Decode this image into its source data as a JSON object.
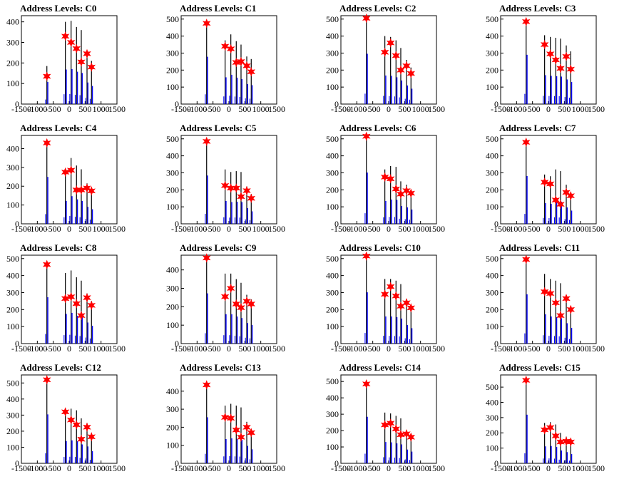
{
  "colors": {
    "background": "#ffffff",
    "blue": "#0000ff",
    "black": "#000000",
    "marker": "#ff0000"
  },
  "chart_data": [
    {
      "type": "bar",
      "title": "Address Levels: C0",
      "xlim": [
        -1500,
        1500
      ],
      "ylim": [
        0,
        430
      ],
      "xticks": [
        "-1500",
        "-1000",
        "-500",
        "0",
        "500",
        "1000",
        "1500"
      ],
      "yticks": [
        "0",
        "100",
        "200",
        "300",
        "400"
      ],
      "peaks": [
        [
          -700,
          185
        ],
        [
          -120,
          400
        ],
        [
          60,
          405
        ],
        [
          230,
          375
        ],
        [
          380,
          360
        ],
        [
          560,
          250
        ],
        [
          700,
          210
        ]
      ],
      "markers": [
        [
          -700,
          135
        ],
        [
          -120,
          330
        ],
        [
          60,
          300
        ],
        [
          230,
          270
        ],
        [
          380,
          205
        ],
        [
          560,
          245
        ],
        [
          700,
          180
        ]
      ]
    },
    {
      "type": "bar",
      "title": "Address Levels: C1",
      "xlim": [
        -1500,
        1500
      ],
      "ylim": [
        0,
        520
      ],
      "xticks": [
        "-1500",
        "-1000",
        "-500",
        "0",
        "500",
        "1000",
        "1500"
      ],
      "yticks": [
        "0",
        "100",
        "200",
        "300",
        "400",
        "500"
      ],
      "peaks": [
        [
          -700,
          480
        ],
        [
          -120,
          375
        ],
        [
          60,
          410
        ],
        [
          230,
          370
        ],
        [
          380,
          350
        ],
        [
          560,
          280
        ],
        [
          700,
          265
        ]
      ],
      "markers": [
        [
          -700,
          475
        ],
        [
          -120,
          340
        ],
        [
          60,
          325
        ],
        [
          230,
          245
        ],
        [
          380,
          250
        ],
        [
          560,
          225
        ],
        [
          700,
          190
        ]
      ]
    },
    {
      "type": "bar",
      "title": "Address Levels: C2",
      "xlim": [
        -1500,
        1500
      ],
      "ylim": [
        0,
        520
      ],
      "xticks": [
        "-1500",
        "-1000",
        "-500",
        "0",
        "500",
        "1000",
        "1500"
      ],
      "yticks": [
        "0",
        "100",
        "200",
        "300",
        "400",
        "500"
      ],
      "peaks": [
        [
          -700,
          510
        ],
        [
          -120,
          400
        ],
        [
          60,
          395
        ],
        [
          230,
          375
        ],
        [
          380,
          330
        ],
        [
          560,
          260
        ],
        [
          700,
          215
        ]
      ],
      "markers": [
        [
          -700,
          505
        ],
        [
          -120,
          305
        ],
        [
          60,
          360
        ],
        [
          230,
          285
        ],
        [
          380,
          200
        ],
        [
          560,
          225
        ],
        [
          700,
          180
        ]
      ]
    },
    {
      "type": "bar",
      "title": "Address Levels: C3",
      "xlim": [
        -1500,
        1500
      ],
      "ylim": [
        0,
        520
      ],
      "xticks": [
        "-1500",
        "-1000",
        "-500",
        "0",
        "500",
        "1000",
        "1500"
      ],
      "yticks": [
        "0",
        "100",
        "200",
        "300",
        "400",
        "500"
      ],
      "peaks": [
        [
          -700,
          500
        ],
        [
          -120,
          405
        ],
        [
          60,
          395
        ],
        [
          230,
          390
        ],
        [
          380,
          385
        ],
        [
          560,
          345
        ],
        [
          700,
          310
        ]
      ],
      "markers": [
        [
          -700,
          485
        ],
        [
          -120,
          350
        ],
        [
          60,
          295
        ],
        [
          230,
          260
        ],
        [
          380,
          210
        ],
        [
          560,
          280
        ],
        [
          700,
          205
        ]
      ]
    },
    {
      "type": "bar",
      "title": "Address Levels: C4",
      "xlim": [
        -1500,
        1500
      ],
      "ylim": [
        0,
        470
      ],
      "xticks": [
        "-1500",
        "-1000",
        "-500",
        "0",
        "500",
        "1000",
        "1500"
      ],
      "yticks": [
        "0",
        "100",
        "200",
        "300",
        "400"
      ],
      "peaks": [
        [
          -700,
          430
        ],
        [
          -120,
          290
        ],
        [
          60,
          350
        ],
        [
          230,
          310
        ],
        [
          380,
          290
        ],
        [
          560,
          215
        ],
        [
          700,
          185
        ]
      ],
      "markers": [
        [
          -700,
          430
        ],
        [
          -120,
          275
        ],
        [
          60,
          285
        ],
        [
          230,
          180
        ],
        [
          380,
          180
        ],
        [
          560,
          190
        ],
        [
          700,
          175
        ]
      ]
    },
    {
      "type": "bar",
      "title": "Address Levels: C5",
      "xlim": [
        -1500,
        1500
      ],
      "ylim": [
        0,
        520
      ],
      "xticks": [
        "-1500",
        "-1000",
        "-500",
        "0",
        "500",
        "1000",
        "1500"
      ],
      "yticks": [
        "0",
        "100",
        "200",
        "300",
        "400",
        "500"
      ],
      "peaks": [
        [
          -700,
          490
        ],
        [
          -120,
          320
        ],
        [
          60,
          305
        ],
        [
          230,
          310
        ],
        [
          380,
          305
        ],
        [
          560,
          220
        ],
        [
          700,
          175
        ]
      ],
      "markers": [
        [
          -700,
          485
        ],
        [
          -120,
          225
        ],
        [
          60,
          210
        ],
        [
          230,
          210
        ],
        [
          380,
          160
        ],
        [
          560,
          195
        ],
        [
          700,
          150
        ]
      ]
    },
    {
      "type": "bar",
      "title": "Address Levels: C6",
      "xlim": [
        -1500,
        1500
      ],
      "ylim": [
        0,
        520
      ],
      "xticks": [
        "-1500",
        "-1000",
        "-500",
        "0",
        "500",
        "1000",
        "1500"
      ],
      "yticks": [
        "0",
        "100",
        "200",
        "300",
        "400",
        "500"
      ],
      "peaks": [
        [
          -700,
          520
        ],
        [
          -120,
          320
        ],
        [
          60,
          340
        ],
        [
          230,
          335
        ],
        [
          380,
          250
        ],
        [
          560,
          230
        ],
        [
          700,
          200
        ]
      ],
      "markers": [
        [
          -700,
          515
        ],
        [
          -120,
          275
        ],
        [
          60,
          265
        ],
        [
          230,
          205
        ],
        [
          380,
          175
        ],
        [
          560,
          195
        ],
        [
          700,
          180
        ]
      ]
    },
    {
      "type": "bar",
      "title": "Address Levels: C7",
      "xlim": [
        -1500,
        1500
      ],
      "ylim": [
        0,
        520
      ],
      "xticks": [
        "-1500",
        "-1000",
        "-500",
        "0",
        "500",
        "1000",
        "1500"
      ],
      "yticks": [
        "0",
        "100",
        "200",
        "300",
        "400",
        "500"
      ],
      "peaks": [
        [
          -700,
          485
        ],
        [
          -120,
          290
        ],
        [
          60,
          280
        ],
        [
          230,
          320
        ],
        [
          380,
          310
        ],
        [
          560,
          230
        ],
        [
          700,
          185
        ]
      ],
      "markers": [
        [
          -700,
          480
        ],
        [
          -120,
          245
        ],
        [
          60,
          235
        ],
        [
          230,
          140
        ],
        [
          380,
          115
        ],
        [
          560,
          185
        ],
        [
          700,
          165
        ]
      ]
    },
    {
      "type": "bar",
      "title": "Address Levels: C8",
      "xlim": [
        -1500,
        1500
      ],
      "ylim": [
        0,
        520
      ],
      "xticks": [
        "-1500",
        "-1000",
        "-500",
        "0",
        "500",
        "1000",
        "1500"
      ],
      "yticks": [
        "0",
        "100",
        "200",
        "300",
        "400",
        "500"
      ],
      "peaks": [
        [
          -700,
          470
        ],
        [
          -120,
          415
        ],
        [
          60,
          430
        ],
        [
          230,
          390
        ],
        [
          380,
          370
        ],
        [
          560,
          295
        ],
        [
          700,
          250
        ]
      ],
      "markers": [
        [
          -700,
          465
        ],
        [
          -120,
          265
        ],
        [
          60,
          275
        ],
        [
          230,
          235
        ],
        [
          380,
          165
        ],
        [
          560,
          270
        ],
        [
          700,
          225
        ]
      ]
    },
    {
      "type": "bar",
      "title": "Address Levels: C9",
      "xlim": [
        -1500,
        1500
      ],
      "ylim": [
        0,
        480
      ],
      "xticks": [
        "-1500",
        "-1000",
        "-500",
        "0",
        "500",
        "1000",
        "1500"
      ],
      "yticks": [
        "0",
        "100",
        "200",
        "300",
        "400"
      ],
      "peaks": [
        [
          -700,
          470
        ],
        [
          -120,
          380
        ],
        [
          60,
          380
        ],
        [
          230,
          350
        ],
        [
          380,
          330
        ],
        [
          560,
          265
        ],
        [
          700,
          240
        ]
      ],
      "markers": [
        [
          -700,
          465
        ],
        [
          -120,
          255
        ],
        [
          60,
          300
        ],
        [
          230,
          215
        ],
        [
          380,
          195
        ],
        [
          560,
          230
        ],
        [
          700,
          215
        ]
      ]
    },
    {
      "type": "bar",
      "title": "Address Levels: C10",
      "xlim": [
        -1500,
        1500
      ],
      "ylim": [
        0,
        520
      ],
      "xticks": [
        "-1500",
        "-1000",
        "-500",
        "0",
        "500",
        "1000",
        "1500"
      ],
      "yticks": [
        "0",
        "100",
        "200",
        "300",
        "400",
        "500"
      ],
      "peaks": [
        [
          -700,
          520
        ],
        [
          -120,
          380
        ],
        [
          60,
          380
        ],
        [
          230,
          370
        ],
        [
          380,
          350
        ],
        [
          560,
          260
        ],
        [
          700,
          215
        ]
      ],
      "markers": [
        [
          -700,
          515
        ],
        [
          -120,
          290
        ],
        [
          60,
          335
        ],
        [
          230,
          280
        ],
        [
          380,
          220
        ],
        [
          560,
          240
        ],
        [
          700,
          210
        ]
      ]
    },
    {
      "type": "bar",
      "title": "Address Levels: C11",
      "xlim": [
        -1500,
        1500
      ],
      "ylim": [
        0,
        520
      ],
      "xticks": [
        "-1500",
        "-1000",
        "-500",
        "0",
        "500",
        "1000",
        "1500"
      ],
      "yticks": [
        "0",
        "100",
        "200",
        "300",
        "400",
        "500"
      ],
      "peaks": [
        [
          -700,
          500
        ],
        [
          -120,
          410
        ],
        [
          60,
          380
        ],
        [
          230,
          370
        ],
        [
          380,
          355
        ],
        [
          560,
          285
        ],
        [
          700,
          220
        ]
      ],
      "markers": [
        [
          -700,
          495
        ],
        [
          -120,
          305
        ],
        [
          60,
          295
        ],
        [
          230,
          240
        ],
        [
          380,
          165
        ],
        [
          560,
          265
        ],
        [
          700,
          200
        ]
      ]
    },
    {
      "type": "bar",
      "title": "Address Levels: C12",
      "xlim": [
        -1500,
        1500
      ],
      "ylim": [
        0,
        550
      ],
      "xticks": [
        "-1500",
        "-1000",
        "-500",
        "0",
        "500",
        "1000",
        "1500"
      ],
      "yticks": [
        "0",
        "100",
        "200",
        "300",
        "400",
        "500"
      ],
      "peaks": [
        [
          -700,
          525
        ],
        [
          -120,
          330
        ],
        [
          60,
          340
        ],
        [
          230,
          330
        ],
        [
          380,
          280
        ],
        [
          560,
          250
        ],
        [
          700,
          180
        ]
      ],
      "markers": [
        [
          -700,
          520
        ],
        [
          -120,
          320
        ],
        [
          60,
          270
        ],
        [
          230,
          240
        ],
        [
          380,
          150
        ],
        [
          560,
          225
        ],
        [
          700,
          165
        ]
      ]
    },
    {
      "type": "bar",
      "title": "Address Levels: C13",
      "xlim": [
        -1500,
        1500
      ],
      "ylim": [
        0,
        490
      ],
      "xticks": [
        "-1500",
        "-1000",
        "-500",
        "0",
        "500",
        "1000",
        "1500"
      ],
      "yticks": [
        "0",
        "100",
        "200",
        "300",
        "400"
      ],
      "peaks": [
        [
          -700,
          440
        ],
        [
          -120,
          320
        ],
        [
          60,
          330
        ],
        [
          230,
          320
        ],
        [
          380,
          310
        ],
        [
          560,
          230
        ],
        [
          700,
          185
        ]
      ],
      "markers": [
        [
          -700,
          435
        ],
        [
          -120,
          255
        ],
        [
          60,
          250
        ],
        [
          230,
          185
        ],
        [
          380,
          145
        ],
        [
          560,
          200
        ],
        [
          700,
          170
        ]
      ]
    },
    {
      "type": "bar",
      "title": "Address Levels: C14",
      "xlim": [
        -1500,
        1500
      ],
      "ylim": [
        0,
        540
      ],
      "xticks": [
        "-1500",
        "-1000",
        "-500",
        "0",
        "500",
        "1000",
        "1500"
      ],
      "yticks": [
        "0",
        "100",
        "200",
        "300",
        "400",
        "500"
      ],
      "peaks": [
        [
          -700,
          490
        ],
        [
          -120,
          310
        ],
        [
          60,
          305
        ],
        [
          230,
          290
        ],
        [
          380,
          275
        ],
        [
          560,
          200
        ],
        [
          700,
          170
        ]
      ],
      "markers": [
        [
          -700,
          485
        ],
        [
          -120,
          235
        ],
        [
          60,
          245
        ],
        [
          230,
          210
        ],
        [
          380,
          175
        ],
        [
          560,
          180
        ],
        [
          700,
          160
        ]
      ]
    },
    {
      "type": "bar",
      "title": "Address Levels: C15",
      "xlim": [
        -1500,
        1500
      ],
      "ylim": [
        0,
        580
      ],
      "xticks": [
        "-1500",
        "-1000",
        "-500",
        "0",
        "500",
        "1000",
        "1500"
      ],
      "yticks": [
        "0",
        "100",
        "200",
        "300",
        "400",
        "500"
      ],
      "peaks": [
        [
          -700,
          550
        ],
        [
          -120,
          265
        ],
        [
          60,
          270
        ],
        [
          230,
          255
        ],
        [
          380,
          200
        ],
        [
          560,
          175
        ],
        [
          700,
          145
        ]
      ],
      "markers": [
        [
          -700,
          545
        ],
        [
          -120,
          220
        ],
        [
          60,
          235
        ],
        [
          230,
          180
        ],
        [
          380,
          140
        ],
        [
          560,
          145
        ],
        [
          700,
          140
        ]
      ]
    }
  ]
}
